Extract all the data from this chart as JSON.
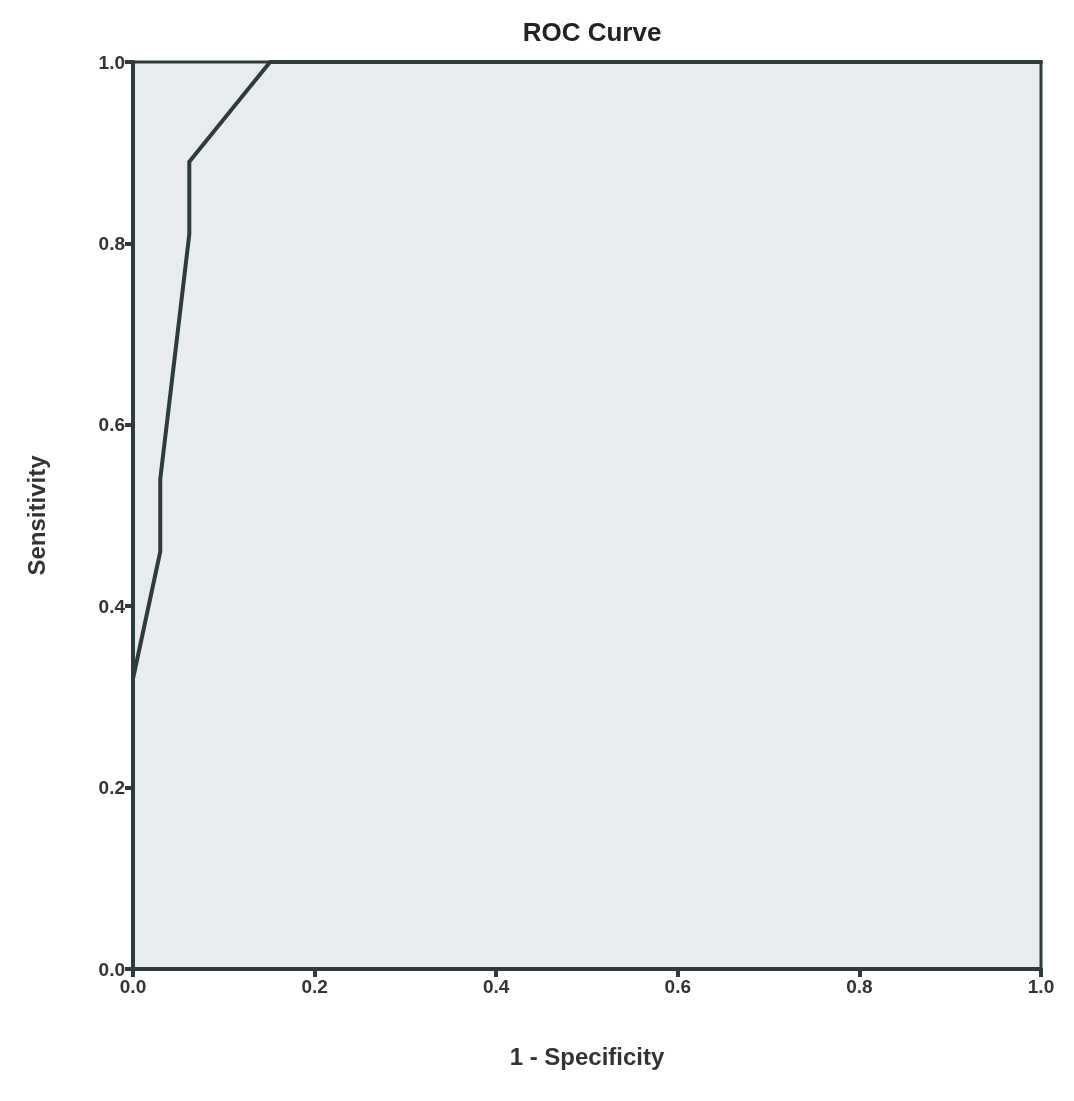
{
  "chart_data": {
    "type": "line",
    "title": "ROC Curve",
    "xlabel": "1 - Specificity",
    "ylabel": "Sensitivity",
    "x": [
      0,
      0,
      0.03,
      0.03,
      0.062,
      0.062,
      0.151,
      1
    ],
    "series": [
      {
        "color": "#2f3b3b",
        "values": [
          0,
          0.32,
          0.46,
          0.54,
          0.81,
          0.89,
          1,
          1
        ]
      }
    ],
    "xlim": [
      0,
      1
    ],
    "ylim": [
      0,
      1
    ],
    "xticks": [
      {
        "value": 0,
        "label": "0.0"
      },
      {
        "value": 0.2,
        "label": "0.2"
      },
      {
        "value": 0.4,
        "label": "0.4"
      },
      {
        "value": 0.6,
        "label": "0.6"
      },
      {
        "value": 0.8,
        "label": "0.8"
      },
      {
        "value": 1,
        "label": "1.0"
      }
    ],
    "yticks": [
      {
        "value": 0,
        "label": "0.0"
      },
      {
        "value": 0.2,
        "label": "0.2"
      },
      {
        "value": 0.4,
        "label": "0.4"
      },
      {
        "value": 0.6,
        "label": "0.6"
      },
      {
        "value": 0.8,
        "label": "0.8"
      },
      {
        "value": 1,
        "label": "1.0"
      }
    ],
    "grid": false,
    "marker": "none",
    "line_style": "solid"
  }
}
